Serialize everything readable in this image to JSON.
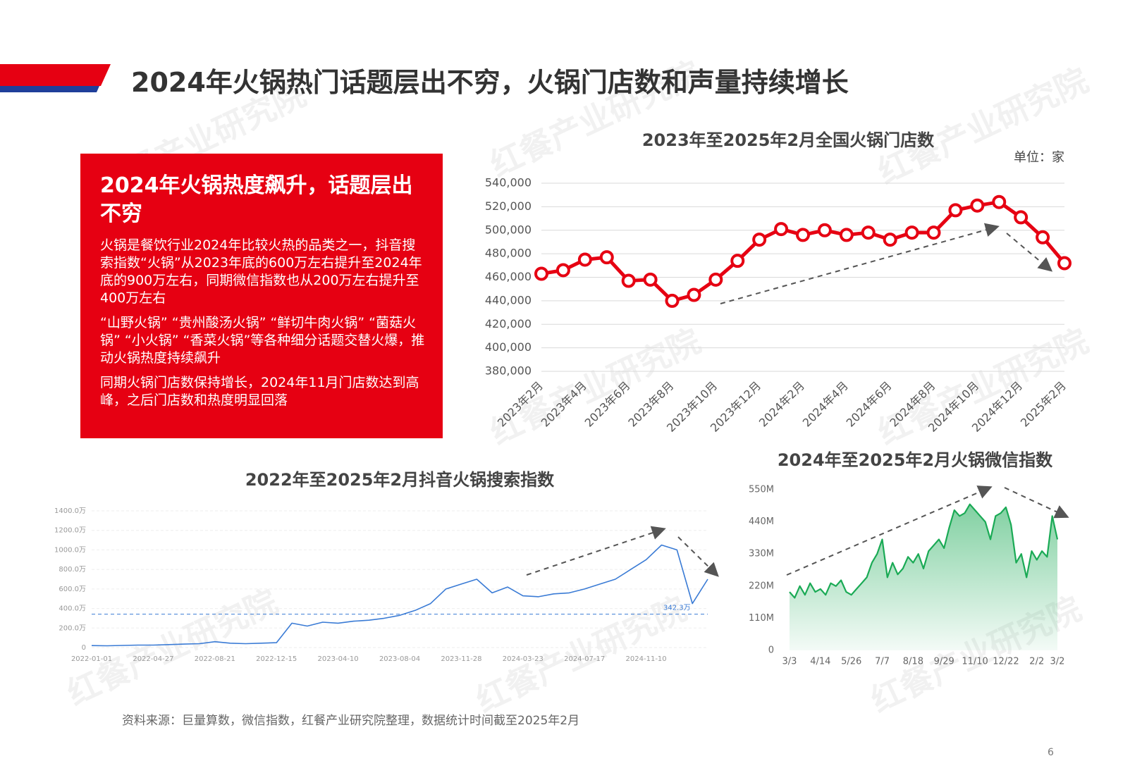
{
  "header": {
    "title": "2024年火锅热门话题层出不穷，火锅门店数和声量持续增长"
  },
  "watermark": "红餐产业研究院",
  "callout": {
    "title": "2024年火锅热度飙升，话题层出不穷",
    "paragraphs": [
      "火锅是餐饮行业2024年比较火热的品类之一，抖音搜索指数“火锅”从2023年底的600万左右提升至2024年底的900万左右，同期微信指数也从200万左右提升至400万左右",
      "“山野火锅” “贵州酸汤火锅” “鲜切牛肉火锅” “菌菇火锅” “小火锅” “香菜火锅”等各种细分话题交替火爆，推动火锅热度持续飙升",
      "同期火锅门店数保持增长，2024年11月门店数达到高峰，之后门店数和热度明显回落"
    ]
  },
  "source": "资料来源：巨量算数，微信指数，红餐产业研究院整理，数据统计时间截至2025年2月",
  "page_number": "6",
  "chart_data": [
    {
      "type": "line",
      "title": "2023年至2025年2月全国火锅门店数",
      "unit_label": "单位：家",
      "categories": [
        "2023年2月",
        null,
        "2023年4月",
        null,
        "2023年6月",
        null,
        "2023年8月",
        null,
        "2023年10月",
        null,
        "2023年12月",
        null,
        "2024年2月",
        null,
        "2024年4月",
        null,
        "2024年6月",
        null,
        "2024年8月",
        null,
        "2024年10月",
        null,
        "2024年12月",
        null,
        "2025年2月"
      ],
      "values": [
        463000,
        466000,
        475000,
        477000,
        457000,
        458000,
        440000,
        445000,
        458000,
        474000,
        492000,
        501000,
        496000,
        500000,
        496000,
        498000,
        492000,
        498000,
        498000,
        517000,
        521000,
        524000,
        511000,
        494000,
        472000
      ],
      "color": "#e60012",
      "marker": "circle",
      "grid": true,
      "ylim": [
        380000,
        540000
      ],
      "yticks": [
        {
          "value": 380000,
          "label": "380,000"
        },
        {
          "value": 400000,
          "label": "400,000"
        },
        {
          "value": 420000,
          "label": "420,000"
        },
        {
          "value": 440000,
          "label": "440,000"
        },
        {
          "value": 460000,
          "label": "460,000"
        },
        {
          "value": 480000,
          "label": "480,000"
        },
        {
          "value": 500000,
          "label": "500,000"
        },
        {
          "value": 520000,
          "label": "520,000"
        },
        {
          "value": 540000,
          "label": "540,000"
        }
      ]
    },
    {
      "type": "line",
      "title": "2022年至2025年2月抖音火锅搜索指数",
      "categories": [
        "2022-01-01",
        null,
        null,
        null,
        "2022-04-27",
        null,
        null,
        null,
        "2022-08-21",
        null,
        null,
        null,
        "2022-12-15",
        null,
        null,
        null,
        "2023-04-10",
        null,
        null,
        null,
        "2023-08-04",
        null,
        null,
        null,
        "2023-11-28",
        null,
        null,
        null,
        "2024-03-23",
        null,
        null,
        null,
        "2024-07-17",
        null,
        null,
        null,
        "2024-11-10",
        null,
        null,
        null,
        null
      ],
      "values": [
        20,
        18,
        22,
        25,
        25,
        30,
        35,
        40,
        60,
        45,
        40,
        45,
        50,
        250,
        220,
        260,
        250,
        270,
        280,
        300,
        330,
        380,
        450,
        600,
        650,
        700,
        560,
        620,
        530,
        520,
        550,
        560,
        600,
        650,
        700,
        800,
        900,
        1050,
        1000,
        450,
        700
      ],
      "color": "#3a7bd5",
      "grid": true,
      "ylim": [
        0,
        1400
      ],
      "yticks": [
        0,
        {
          "value": 200,
          "label": "200.0万"
        },
        {
          "value": 400,
          "label": "400.0万"
        },
        {
          "value": 600,
          "label": "600.0万"
        },
        {
          "value": 800,
          "label": "800.0万"
        },
        {
          "value": 1000,
          "label": "1000.0万"
        },
        {
          "value": 1200,
          "label": "1200.0万"
        },
        {
          "value": 1400,
          "label": "1400.0万"
        }
      ],
      "reference_line": {
        "value": 342.3,
        "label": "342.3万"
      }
    },
    {
      "type": "area",
      "title": "2024年至2025年2月火锅微信指数",
      "categories": [
        "3/3",
        null,
        null,
        null,
        null,
        null,
        "4/14",
        null,
        null,
        null,
        null,
        null,
        "5/26",
        null,
        null,
        null,
        null,
        null,
        "7/7",
        null,
        null,
        null,
        null,
        null,
        "8/18",
        null,
        null,
        null,
        null,
        null,
        "9/29",
        null,
        null,
        null,
        null,
        null,
        "11/10",
        null,
        null,
        null,
        null,
        null,
        "12/22",
        null,
        null,
        null,
        null,
        null,
        "2/2",
        null,
        null,
        null,
        "3/2"
      ],
      "values": [
        200,
        180,
        220,
        190,
        230,
        200,
        210,
        190,
        230,
        220,
        240,
        200,
        190,
        210,
        230,
        250,
        300,
        330,
        380,
        250,
        300,
        260,
        280,
        320,
        300,
        330,
        280,
        340,
        360,
        380,
        350,
        420,
        480,
        460,
        470,
        500,
        480,
        460,
        440,
        380,
        460,
        470,
        490,
        430,
        300,
        330,
        250,
        340,
        310,
        340,
        320,
        460,
        380
      ],
      "color": "#1aaa55",
      "grid": false,
      "ylim": [
        0,
        550
      ],
      "yticks": [
        0,
        {
          "value": 110,
          "label": "110M"
        },
        {
          "value": 220,
          "label": "220M"
        },
        {
          "value": 330,
          "label": "330M"
        },
        {
          "value": 440,
          "label": "440M"
        },
        {
          "value": 550,
          "label": "550M"
        }
      ]
    }
  ]
}
